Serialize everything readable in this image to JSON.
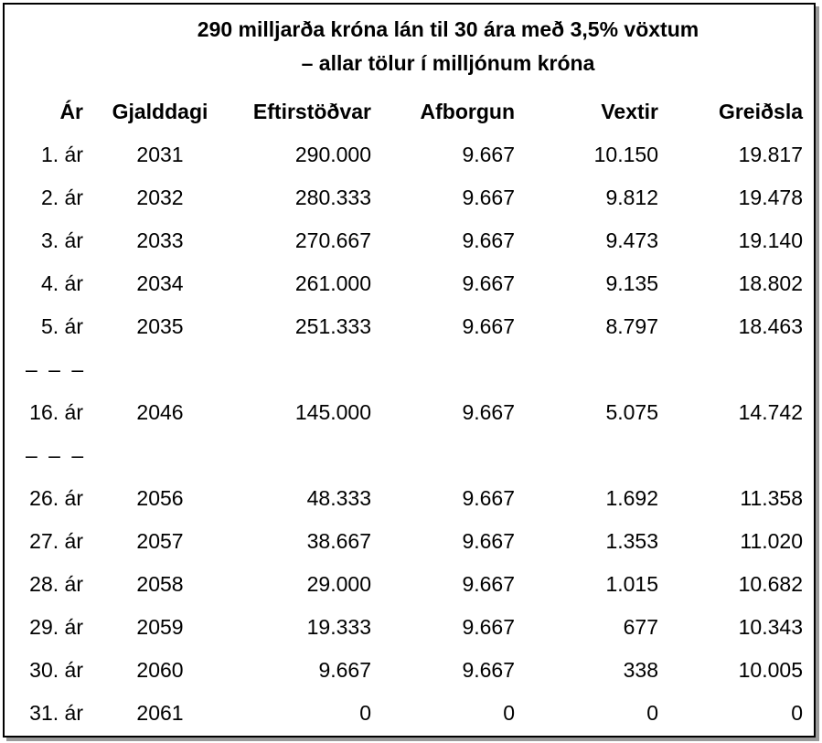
{
  "title": {
    "line1": "290 milljarða króna lán til 30 ára með 3,5% vöxtum",
    "line2": "– allar tölur í milljónum króna"
  },
  "columns": [
    "Ár",
    "Gjalddagi",
    "Eftirstöðvar",
    "Afborgun",
    "Vextir",
    "Greiðsla"
  ],
  "rows": [
    [
      "1. ár",
      "2031",
      "290.000",
      "9.667",
      "10.150",
      "19.817"
    ],
    [
      "2. ár",
      "2032",
      "280.333",
      "9.667",
      "9.812",
      "19.478"
    ],
    [
      "3. ár",
      "2033",
      "270.667",
      "9.667",
      "9.473",
      "19.140"
    ],
    [
      "4. ár",
      "2034",
      "261.000",
      "9.667",
      "9.135",
      "18.802"
    ],
    [
      "5. ár",
      "2035",
      "251.333",
      "9.667",
      "8.797",
      "18.463"
    ],
    [
      "16. ár",
      "2046",
      "145.000",
      "9.667",
      "5.075",
      "14.742"
    ],
    [
      "26. ár",
      "2056",
      "48.333",
      "9.667",
      "1.692",
      "11.358"
    ],
    [
      "27. ár",
      "2057",
      "38.667",
      "9.667",
      "1.353",
      "11.020"
    ],
    [
      "28. ár",
      "2058",
      "29.000",
      "9.667",
      "1.015",
      "10.682"
    ],
    [
      "29. ár",
      "2059",
      "19.333",
      "9.667",
      "677",
      "10.343"
    ],
    [
      "30. ár",
      "2060",
      "9.667",
      "9.667",
      "338",
      "10.005"
    ],
    [
      "31. ár",
      "2061",
      "0",
      "0",
      "0",
      "0"
    ]
  ],
  "gap_marker": "– – –"
}
